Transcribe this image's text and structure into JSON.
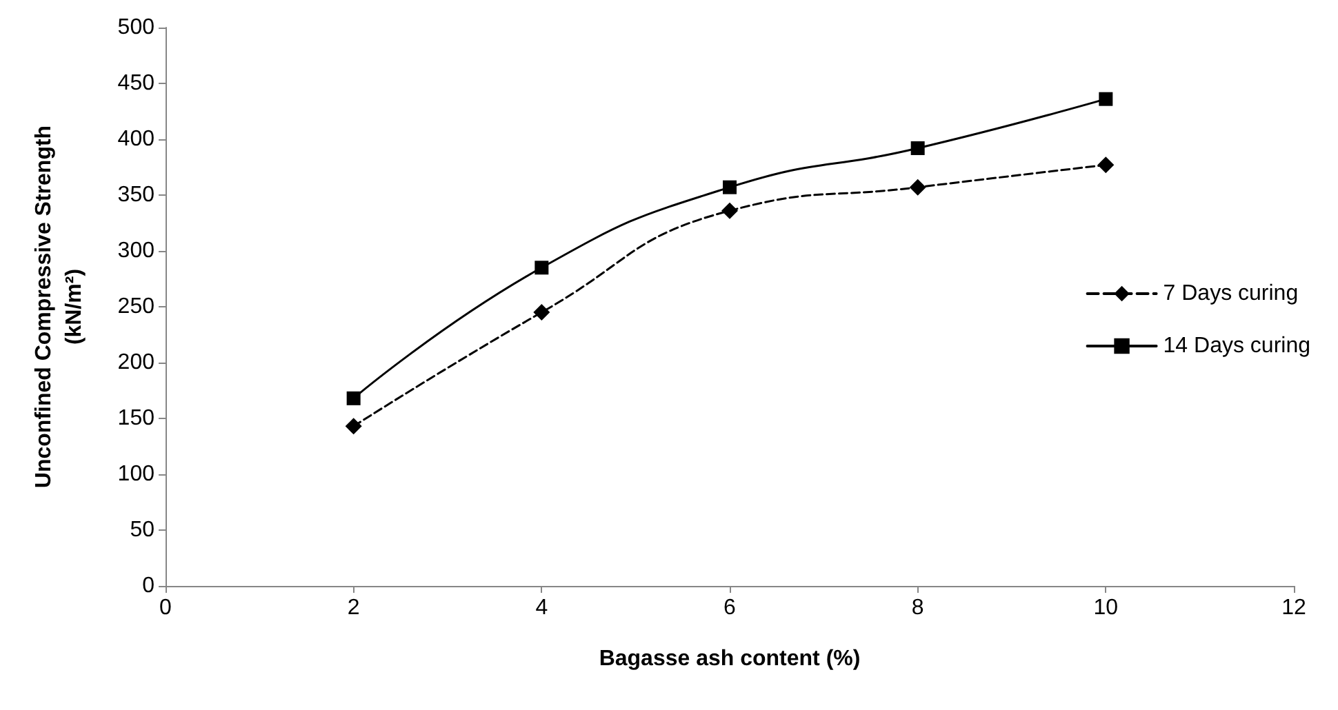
{
  "chart_data": {
    "type": "line",
    "xlabel": "Bagasse ash content (%)",
    "ylabel": "Unconfined Compressive Strength\n(kN/m²)",
    "x": [
      2,
      4,
      6,
      8,
      10
    ],
    "series": [
      {
        "name": "7 Days curing",
        "color": "#000000",
        "values": [
          143,
          245,
          336,
          357,
          377
        ],
        "marker": "diamond",
        "line_style": "dashed"
      },
      {
        "name": "14 Days curing",
        "color": "#000000",
        "values": [
          168,
          285,
          357,
          392,
          436
        ],
        "marker": "square",
        "line_style": "solid"
      }
    ],
    "xlim": [
      0,
      12
    ],
    "xticks": [
      0,
      2,
      4,
      6,
      8,
      10,
      12
    ],
    "ylim": [
      0,
      500
    ],
    "yticks": [
      0,
      50,
      100,
      150,
      200,
      250,
      300,
      350,
      400,
      450,
      500
    ],
    "grid": false,
    "legend": "right"
  }
}
